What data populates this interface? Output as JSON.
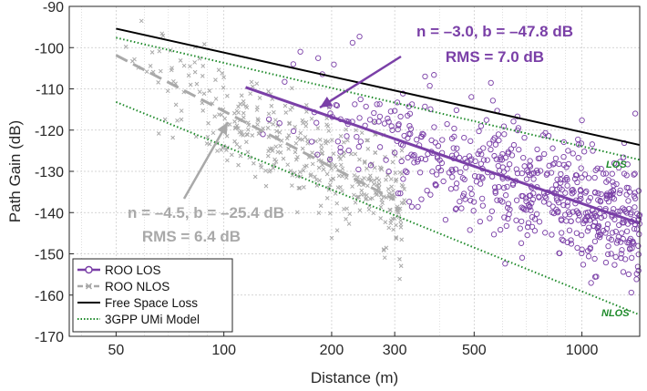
{
  "chart_data": {
    "type": "scatter",
    "title": "",
    "xlabel": "Distance (m)",
    "ylabel": "Path Gain (dB)",
    "xscale": "log",
    "xlim": [
      37,
      1450
    ],
    "ylim": [
      -170,
      -90
    ],
    "xticks": [
      50,
      100,
      200,
      300,
      500,
      1000
    ],
    "yticks": [
      -170,
      -160,
      -150,
      -140,
      -130,
      -120,
      -110,
      -100,
      -90
    ],
    "grid": true,
    "colors": {
      "los": "#7a3fa7",
      "nlos": "#a9a9a9",
      "fspl": "#000000",
      "gpp": "#1e8a2a",
      "gridline": "#c8c8c8"
    },
    "series": [
      {
        "name": "ROO LOS",
        "type": "scatter+fit",
        "marker": "circle",
        "color": "#7a3fa7",
        "fit": {
          "n": -3.0,
          "b": -47.8,
          "rms": 7.0,
          "x_range": [
            115,
            1450
          ]
        }
      },
      {
        "name": "ROO NLOS",
        "type": "scatter+fit",
        "marker": "x",
        "color": "#a9a9a9",
        "fit": {
          "n": -4.5,
          "b": -25.4,
          "rms": 6.4,
          "x_range": [
            50,
            300
          ]
        }
      },
      {
        "name": "Free Space Loss",
        "type": "line",
        "color": "#000000",
        "x": [
          50,
          1450
        ],
        "y": [
          -95.4,
          -123.6
        ]
      },
      {
        "name": "3GPP UMi Model",
        "type": "dotted",
        "color": "#1e8a2a",
        "lines": [
          {
            "label": "LOS",
            "x": [
              50,
              1450
            ],
            "y": [
              -97.6,
              -127.2
            ]
          },
          {
            "label": "NLOS",
            "x": [
              50,
              1450
            ],
            "y": [
              -113.2,
              -164.8
            ]
          }
        ]
      }
    ],
    "legend": {
      "placement": "bottom-left",
      "entries": [
        "ROO LOS",
        "ROO NLOS",
        "Free Space Loss",
        "3GPP UMi Model"
      ]
    },
    "annotations": {
      "los_fit_line1": "n = –3.0, b = –47.8 dB",
      "los_fit_line2": "RMS = 7.0 dB",
      "nlos_fit_line1": "n = –4.5, b = –25.4 dB",
      "nlos_fit_line2": "RMS = 6.4 dB",
      "los_tag": "LOS",
      "nlos_tag": "NLOS"
    },
    "scatter_generation": {
      "los": {
        "count": 620,
        "x_range": [
          120,
          1450
        ],
        "seed": 7
      },
      "nlos": {
        "count": 420,
        "x_range": [
          50,
          320
        ],
        "seed": 13
      }
    }
  }
}
